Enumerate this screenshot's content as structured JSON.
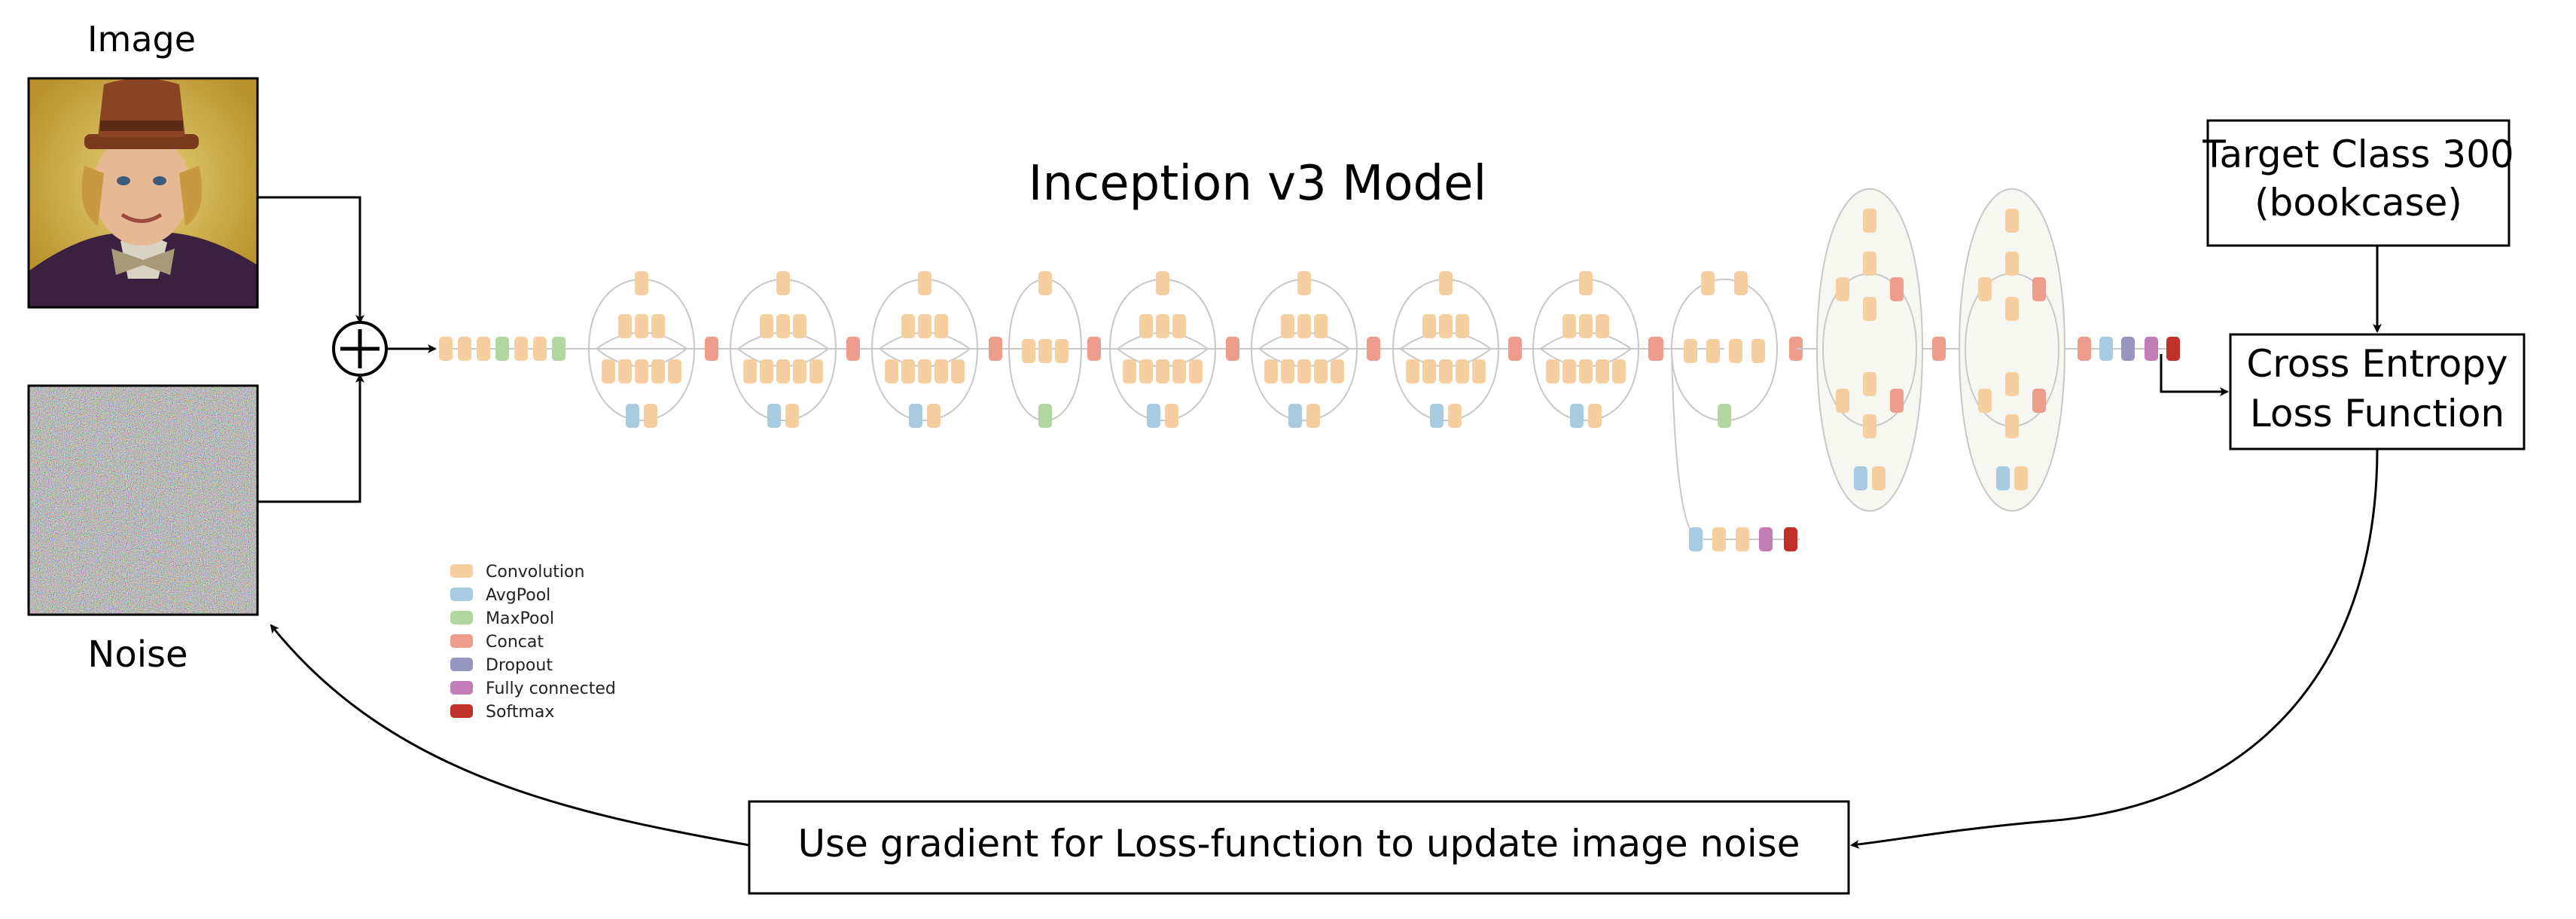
{
  "image_label": "Image",
  "noise_label": "Noise",
  "model_title": "Inception v3 Model",
  "target_box": {
    "line1": "Target Class 300",
    "line2": "(bookcase)"
  },
  "loss_box": {
    "line1": "Cross Entropy",
    "line2": "Loss Function"
  },
  "gradient_box": "Use gradient for Loss-function to update image noise",
  "legend": [
    {
      "label": "Convolution",
      "color": "#f6cfa0"
    },
    {
      "label": "AvgPool",
      "color": "#a8cbe2"
    },
    {
      "label": "MaxPool",
      "color": "#b2d6a0"
    },
    {
      "label": "Concat",
      "color": "#ee9c8c"
    },
    {
      "label": "Dropout",
      "color": "#9696c0"
    },
    {
      "label": "Fully connected",
      "color": "#c27cb6"
    },
    {
      "label": "Softmax",
      "color": "#c0302a"
    }
  ],
  "colors": {
    "convolution": "#f6cfa0",
    "avgpool": "#a8cbe2",
    "maxpool": "#b2d6a0",
    "concat": "#ee9c8c",
    "dropout": "#9696c0",
    "fully_connected": "#c27cb6",
    "softmax": "#c0302a",
    "block_outline": "#c8c8c8",
    "arrow": "#000000"
  },
  "icons": {
    "photo": "portrait-photo-icon",
    "noise": "noise-texture-icon",
    "adder": "plus-circle-icon"
  }
}
